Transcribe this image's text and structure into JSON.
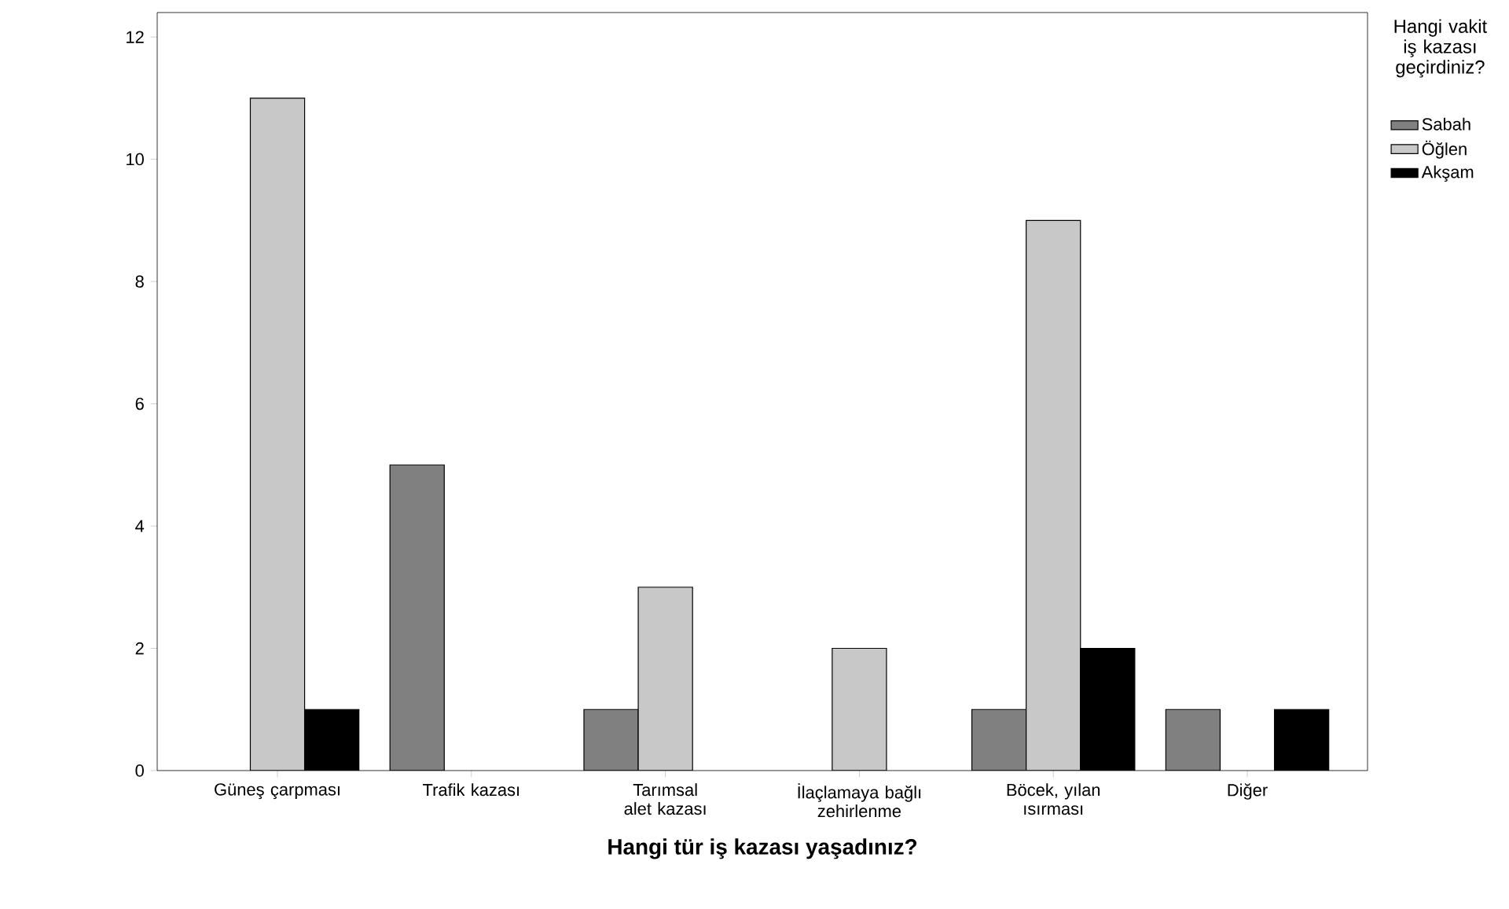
{
  "chart_data": {
    "type": "bar",
    "xlabel": "Hangi tür iş kazası yaşadınız?",
    "legend_title": "Hangi vakit iş kazası geçirdiniz?",
    "categories": [
      "Güneş çarpması",
      "Trafik kazası",
      "Tarımsal alet kazası",
      "İlaçlamaya bağlı zehirlenme",
      "Böcek, yılan ısırması",
      "Diğer"
    ],
    "series": [
      {
        "name": "Sabah",
        "color": "#808080",
        "values": [
          null,
          5,
          1,
          null,
          1,
          1
        ]
      },
      {
        "name": "Öğlen",
        "color": "#c8c8c8",
        "values": [
          11,
          null,
          3,
          2,
          9,
          null
        ]
      },
      {
        "name": "Akşam",
        "color": "#000000",
        "values": [
          1,
          null,
          null,
          null,
          2,
          1
        ]
      }
    ],
    "ylim": [
      0,
      12.4
    ],
    "yticks": [
      0,
      2,
      4,
      6,
      8,
      10,
      12
    ],
    "grid": false,
    "legend": "top right"
  }
}
